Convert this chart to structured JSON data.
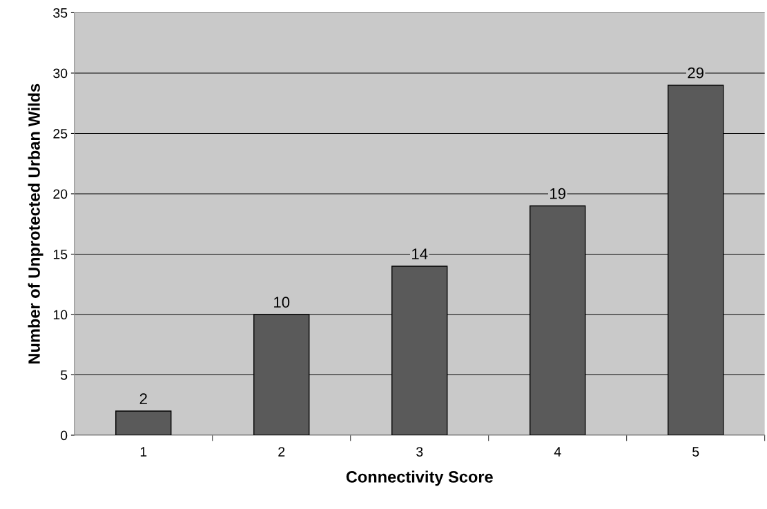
{
  "chart_data": {
    "type": "bar",
    "xlabel": "Connectivity Score",
    "ylabel": "Number of Unprotected Urban Wilds",
    "categories": [
      "1",
      "2",
      "3",
      "4",
      "5"
    ],
    "values": [
      2,
      10,
      14,
      19,
      29
    ],
    "color": "#5a5a5a",
    "ylim": [
      0,
      35
    ],
    "yticks": [
      0,
      5,
      10,
      15,
      20,
      25,
      30,
      35
    ],
    "grid": "y",
    "data_labels": true
  }
}
